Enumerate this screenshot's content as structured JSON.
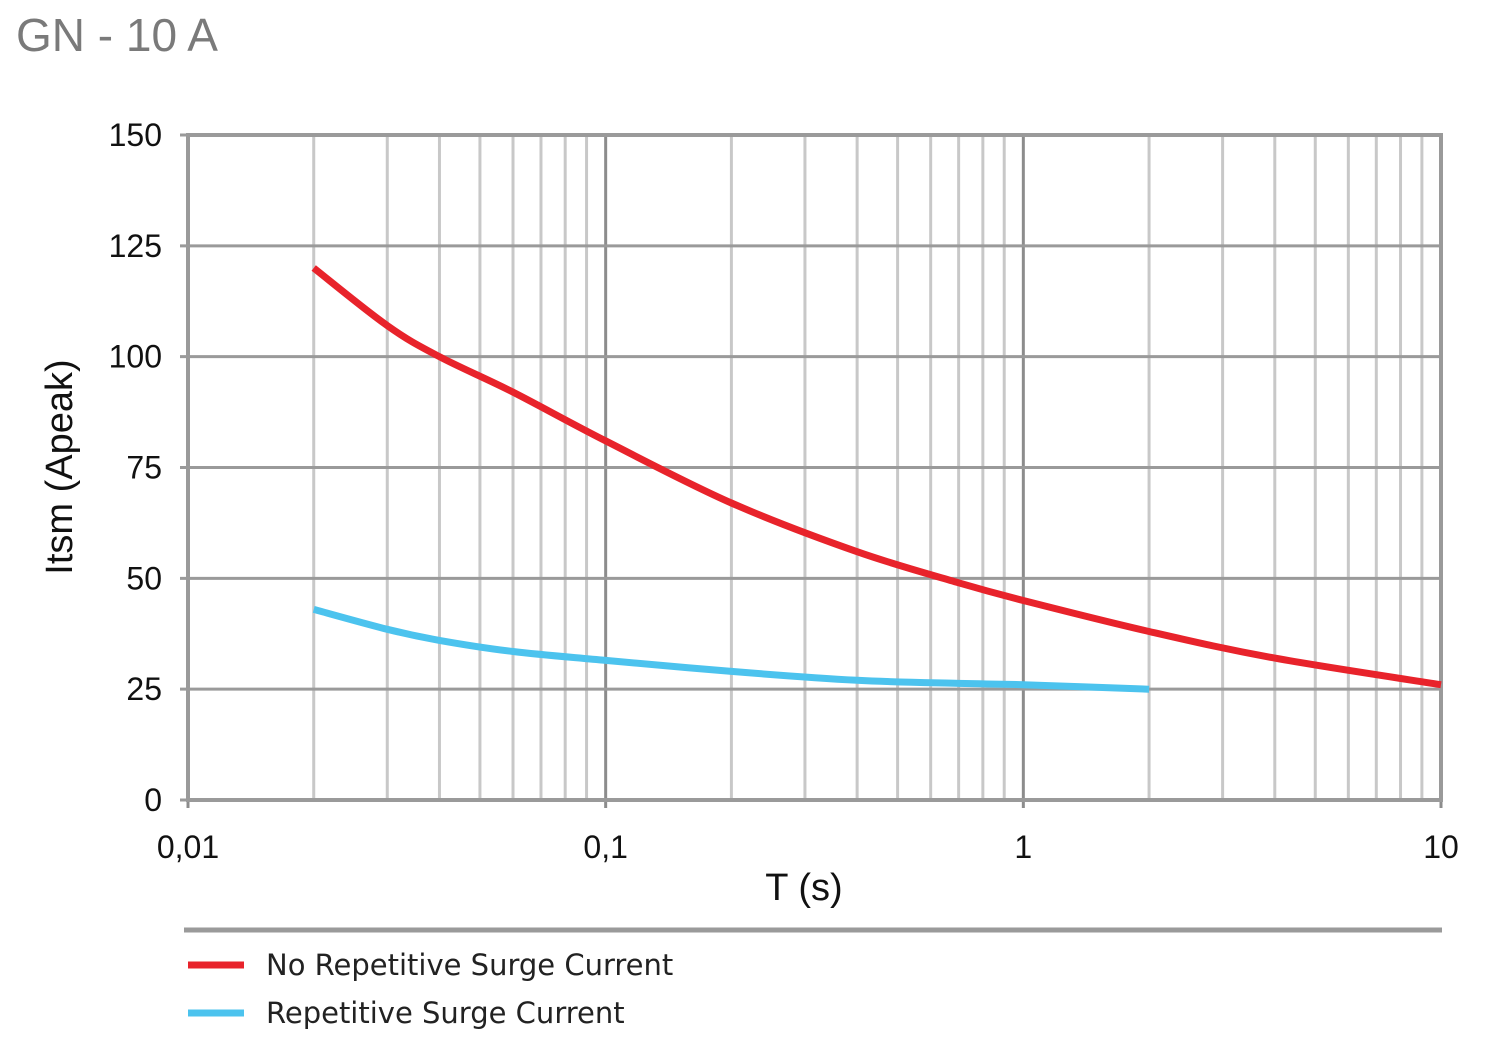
{
  "chart_data": {
    "type": "line",
    "title": "GN - 10 A",
    "xlabel": "T (s)",
    "ylabel": "Itsm (Apeak)",
    "x_scale": "log",
    "xlim": [
      0.01,
      10
    ],
    "ylim": [
      0,
      150
    ],
    "x_ticks": [
      {
        "value": 0.01,
        "label": "0,01"
      },
      {
        "value": 0.1,
        "label": "0,1"
      },
      {
        "value": 1,
        "label": "1"
      },
      {
        "value": 10,
        "label": "10"
      }
    ],
    "y_ticks": [
      {
        "value": 0,
        "label": "0"
      },
      {
        "value": 25,
        "label": "25"
      },
      {
        "value": 50,
        "label": "50"
      },
      {
        "value": 75,
        "label": "75"
      },
      {
        "value": 100,
        "label": "100"
      },
      {
        "value": 125,
        "label": "125"
      },
      {
        "value": 150,
        "label": "150"
      }
    ],
    "grid": true,
    "legend_position": "bottom",
    "series": [
      {
        "name": "No Repetitive Surge Current",
        "color": "#e8232b",
        "x": [
          0.02,
          0.03,
          0.04,
          0.06,
          0.1,
          0.2,
          0.4,
          0.7,
          1,
          2,
          4,
          10
        ],
        "y": [
          120,
          107,
          100,
          92,
          81,
          67,
          56,
          49,
          45,
          38,
          32,
          26
        ]
      },
      {
        "name": "Repetitive Surge Current",
        "color": "#4cc3ee",
        "x": [
          0.02,
          0.03,
          0.04,
          0.06,
          0.1,
          0.2,
          0.4,
          0.7,
          1,
          2
        ],
        "y": [
          43,
          38.5,
          36,
          33.5,
          31.5,
          29,
          27,
          26.3,
          26,
          25
        ]
      }
    ]
  }
}
